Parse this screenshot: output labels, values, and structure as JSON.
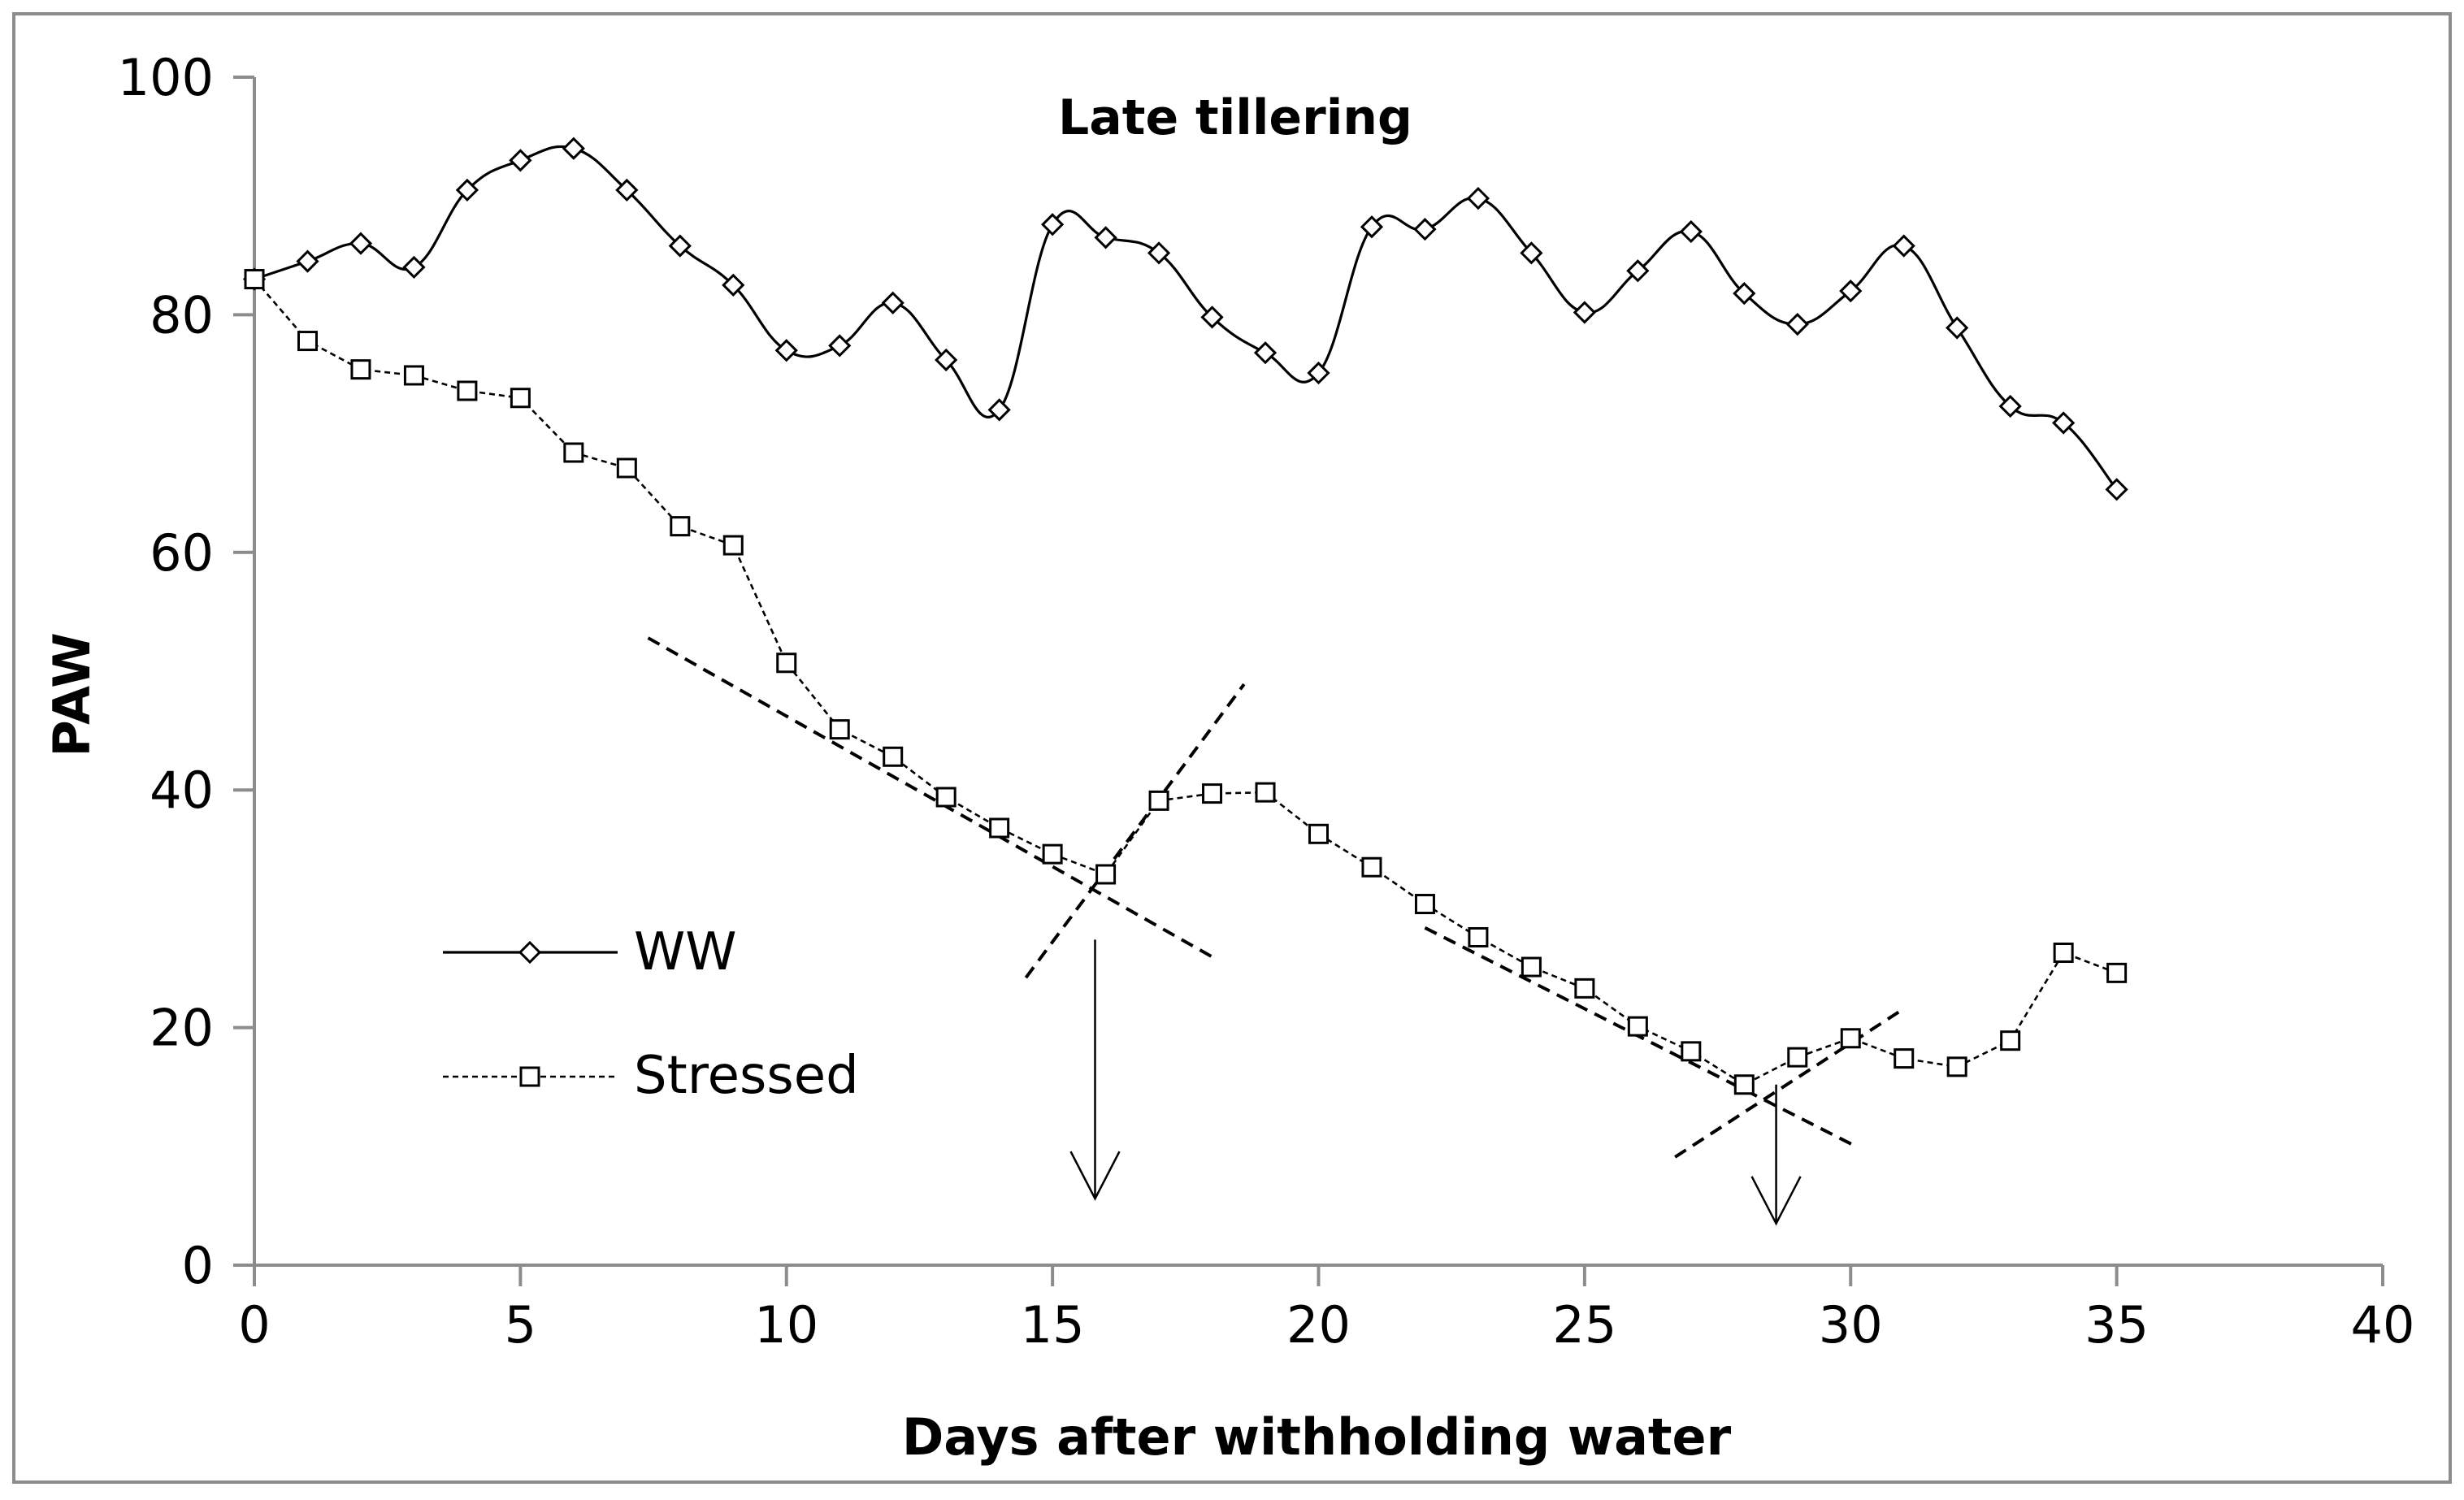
{
  "chart_data": {
    "type": "line",
    "title": "Late tillering",
    "xlabel": "Days after withholding water",
    "ylabel": "PAW",
    "xlim": [
      0,
      40
    ],
    "ylim": [
      0,
      100
    ],
    "xticks": [
      0,
      5,
      10,
      15,
      20,
      25,
      30,
      35,
      40
    ],
    "yticks": [
      0,
      20,
      40,
      60,
      80,
      100
    ],
    "legend_position": "lower-left",
    "series": [
      {
        "name": "WW",
        "marker": "diamond",
        "line_style": "solid",
        "smooth": true,
        "x": [
          0,
          1,
          2,
          3,
          4,
          5,
          6,
          7,
          8,
          9,
          10,
          11,
          12,
          13,
          14,
          15,
          16,
          17,
          18,
          19,
          20,
          21,
          22,
          23,
          24,
          25,
          26,
          27,
          28,
          29,
          30,
          31,
          32,
          33,
          34,
          35
        ],
        "values": [
          83,
          84.5,
          86,
          84,
          90.5,
          93,
          94,
          90.5,
          85.8,
          82.5,
          77,
          77.4,
          81,
          76.2,
          72,
          87.6,
          86.5,
          85.2,
          79.8,
          76.8,
          75.1,
          87.4,
          87.2,
          89.8,
          85.2,
          80.2,
          83.7,
          87,
          81.8,
          79.2,
          82,
          85.8,
          78.9,
          72.3,
          70.9,
          65.3
        ]
      },
      {
        "name": "Stressed",
        "marker": "square",
        "line_style": "dashed",
        "smooth": false,
        "x": [
          0,
          1,
          2,
          3,
          4,
          5,
          6,
          7,
          8,
          9,
          10,
          11,
          12,
          13,
          14,
          15,
          16,
          17,
          18,
          19,
          20,
          21,
          22,
          23,
          24,
          25,
          26,
          27,
          28,
          29,
          30,
          31,
          32,
          33,
          34,
          35
        ],
        "values": [
          83,
          77.8,
          75.4,
          74.9,
          73.6,
          73,
          68.4,
          67.1,
          62.2,
          60.6,
          50.7,
          45.1,
          42.8,
          39.4,
          36.8,
          34.6,
          32.9,
          39.1,
          39.7,
          39.8,
          36.3,
          33.5,
          30.4,
          27.6,
          25.1,
          23.3,
          20.1,
          18,
          15.2,
          17.5,
          19.1,
          17.4,
          16.7,
          18.9,
          26.3,
          24.6
        ]
      }
    ],
    "annotations": [
      {
        "type": "trend_line",
        "style": "dashed",
        "from": [
          7.4,
          52.8
        ],
        "to": [
          18.1,
          25.7
        ]
      },
      {
        "type": "trend_line",
        "style": "dashed",
        "from": [
          14.5,
          24.2
        ],
        "to": [
          18.6,
          48.9
        ]
      },
      {
        "type": "trend_line",
        "style": "dashed",
        "from": [
          22,
          28.4
        ],
        "to": [
          30.1,
          10
        ]
      },
      {
        "type": "trend_line",
        "style": "dashed",
        "from": [
          26.7,
          9.1
        ],
        "to": [
          30.9,
          21.3
        ]
      },
      {
        "type": "arrow",
        "from": [
          15.8,
          27.4
        ],
        "to": [
          15.8,
          5.6
        ]
      },
      {
        "type": "arrow",
        "from": [
          28.6,
          15.2
        ],
        "to": [
          28.6,
          3.5
        ]
      }
    ]
  }
}
